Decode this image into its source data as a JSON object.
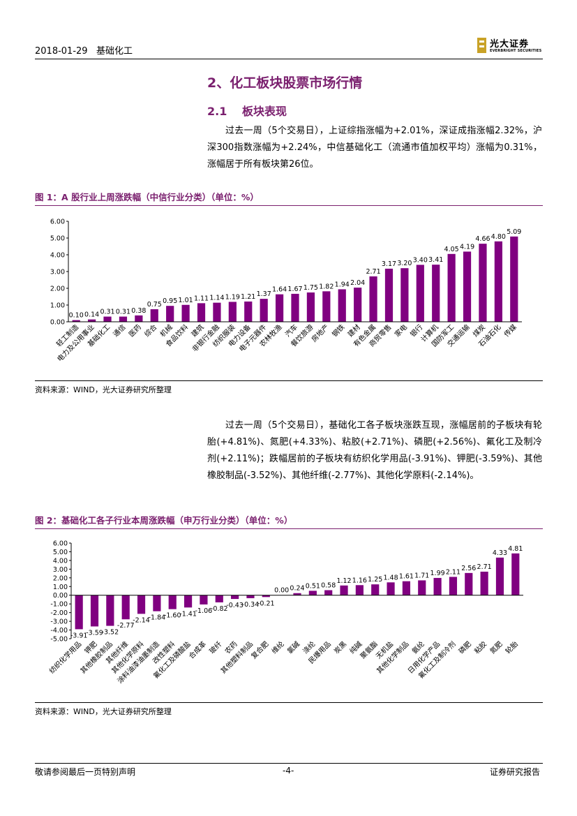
{
  "header": {
    "date": "2018-01-29",
    "sector": "基础化工",
    "logo_cn": "光大证券",
    "logo_en": "EVERBRIGHT SECURITIES"
  },
  "section": {
    "title": "2、化工板块股票市场行情",
    "sub_num": "2.1",
    "sub_title": "板块表现"
  },
  "paragraph1": "过去一周（5个交易日），上证综指涨幅为+2.01%，深证成指涨幅2.32%，沪深300指数涨幅为+2.24%，中信基础化工（流通市值加权平均）涨幅为0.31%，涨幅居于所有板块第26位。",
  "figure1": {
    "title": "图 1：A 股行业上周涨跌幅（中信行业分类）（单位：%）",
    "source": "资料来源：WIND，光大证券研究所整理"
  },
  "paragraph2": "过去一周（5个交易日），基础化工各子板块涨跌互现，涨幅居前的子板块有轮胎(+4.81%)、氮肥(+4.33%)、粘胶(+2.71%)、磷肥(+2.56%)、氟化工及制冷剂(+2.11%)；跌幅居前的子板块有纺织化学用品(-3.91%)、钾肥(-3.59%)、其他橡胶制品(-3.52%)、其他纤维(-2.77%)、其他化学原料(-2.14%)。",
  "figure2": {
    "title": "图 2：基础化工各子行业本周涨跌幅（申万行业分类）（单位：%）",
    "source": "资料来源：WIND，光大证券研究所整理"
  },
  "footer": {
    "left": "敬请参阅最后一页特别声明",
    "center": "-4-",
    "right": "证券研究报告"
  },
  "colors": {
    "bar": "#800080",
    "accent": "#7a1f6e"
  },
  "chart_data": [
    {
      "type": "bar",
      "ylim": [
        0,
        6
      ],
      "yticks": [
        "0.00",
        "1.00",
        "2.00",
        "3.00",
        "4.00",
        "5.00",
        "6.00"
      ],
      "categories": [
        "轻工制造",
        "电力及公用事业",
        "基础化工",
        "通信",
        "医药",
        "综合",
        "机械",
        "食品饮料",
        "建筑",
        "非银行金融",
        "纺织服装",
        "电力设备",
        "电子元器件",
        "农林牧渔",
        "汽车",
        "餐饮旅游",
        "房地产",
        "钢铁",
        "建材",
        "有色金属",
        "商贸零售",
        "家电",
        "银行",
        "计算机",
        "国防军工",
        "交通运输",
        "煤炭",
        "石油石化",
        "传媒"
      ],
      "values": [
        0.1,
        0.14,
        0.31,
        0.31,
        0.38,
        0.75,
        0.95,
        1.01,
        1.11,
        1.14,
        1.19,
        1.21,
        1.37,
        1.64,
        1.67,
        1.75,
        1.82,
        1.94,
        2.04,
        2.71,
        3.17,
        3.2,
        3.4,
        3.41,
        4.05,
        4.19,
        4.66,
        4.8,
        5.09
      ],
      "value_labels": [
        "0.10",
        "0.14",
        "0.31",
        "0.31",
        "0.38",
        "0.75",
        "0.95",
        "1.01",
        "1.11",
        "1.14",
        "1.19",
        "1.21",
        "1.37",
        "1.64",
        "1.67",
        "1.75",
        "1.82",
        "1.94",
        "2.04",
        "2.71",
        "3.17",
        "3.20",
        "3.40",
        "3.41",
        "4.05",
        "4.19",
        "4.66",
        "4.80",
        "5.09"
      ]
    },
    {
      "type": "bar",
      "ylim": [
        -5,
        6
      ],
      "yticks": [
        "-5.00",
        "-4.00",
        "-3.00",
        "-2.00",
        "-1.00",
        "0.00",
        "1.00",
        "2.00",
        "3.00",
        "4.00",
        "5.00",
        "6.00"
      ],
      "categories": [
        "纺织化学用品",
        "钾肥",
        "其他橡胶制品",
        "其他纤维",
        "其他化学原料",
        "涂料油漆油墨制造",
        "改性塑料",
        "氟化工及磷酸盐",
        "合成革",
        "玻纤",
        "农药",
        "其他塑料制品",
        "复合肥",
        "维纶",
        "氯碱",
        "涤纶",
        "民爆用品",
        "炭黑",
        "纯碱",
        "聚氨酯",
        "无机盐",
        "其他化学制品",
        "氨纶",
        "日用化学产品",
        "氟化工及制冷剂",
        "磷肥",
        "粘胶",
        "氮肥",
        "轮胎"
      ],
      "values": [
        -3.91,
        -3.59,
        -3.52,
        -2.77,
        -2.14,
        -1.84,
        -1.6,
        -1.41,
        -1.06,
        -0.82,
        -0.43,
        -0.34,
        -0.21,
        0.0,
        0.24,
        0.51,
        0.58,
        1.12,
        1.16,
        1.25,
        1.48,
        1.61,
        1.71,
        1.99,
        2.11,
        2.56,
        2.71,
        4.33,
        4.81
      ],
      "value_labels": [
        "-3.91",
        "-3.59",
        "-3.52",
        "-2.77",
        "-2.14",
        "-1.84",
        "-1.60",
        "-1.41",
        "-1.06",
        "-0.82",
        "-0.43",
        "-0.34",
        "-0.21",
        "0.00",
        "0.24",
        "0.51",
        "0.58",
        "1.12",
        "1.16",
        "1.25",
        "1.48",
        "1.61",
        "1.71",
        "1.99",
        "2.11",
        "2.56",
        "2.71",
        "4.33",
        "4.81"
      ]
    }
  ]
}
